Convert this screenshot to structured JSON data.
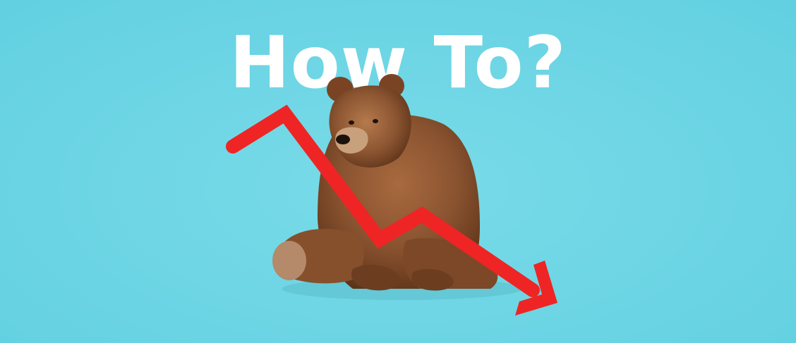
{
  "banner": {
    "headline": "How To?",
    "background_color": "#6dd8e6",
    "headline_color": "#ffffff",
    "bear_color": "#8a5330",
    "trend_color": "#ee2524",
    "bear": "bear-illustration",
    "trend": "downward-trend-arrow"
  }
}
